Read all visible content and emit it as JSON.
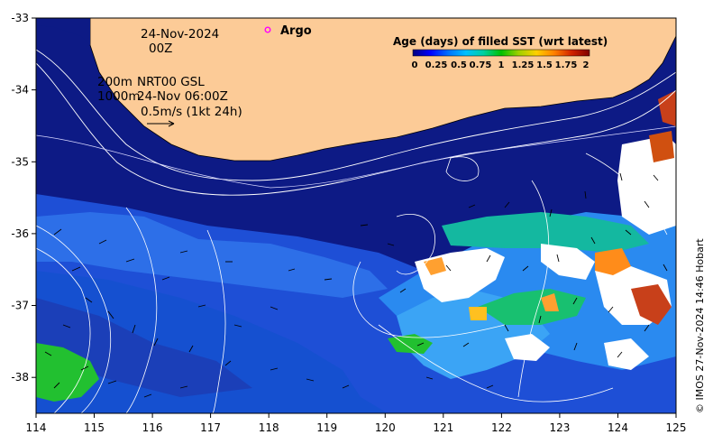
{
  "map": {
    "lon_range": [
      114,
      125
    ],
    "lat_range": [
      -38.5,
      -33
    ],
    "x_ticks": [
      "114",
      "115",
      "116",
      "117",
      "118",
      "119",
      "120",
      "121",
      "122",
      "123",
      "124",
      "125"
    ],
    "y_ticks": [
      "-33",
      "-34",
      "-35",
      "-36",
      "-37",
      "-38"
    ],
    "colors": {
      "land": "#fccb97",
      "ocean_deep": "#0d1a85",
      "coast": "#000000"
    }
  },
  "annotations": {
    "date": "24-Nov-2024",
    "time": "00Z",
    "depth_200": "200m",
    "depth_1000": "1000m",
    "product": "NRT00 GSL",
    "product_time": "24-Nov 06:00Z",
    "scale_label": "0.5m/s (1kt 24h)"
  },
  "legend": {
    "argo_label": "Argo",
    "argo_color": "#ff00ff"
  },
  "colorbar": {
    "title": "Age (days) of filled SST (wrt latest)",
    "ticks": [
      "0",
      "0.25",
      "0.5",
      "0.75",
      "1",
      "1.25",
      "1.5",
      "1.75",
      "2"
    ],
    "colors": [
      "#000080",
      "#0000ff",
      "#0070ff",
      "#00c0ff",
      "#00d0a0",
      "#00c000",
      "#a0d000",
      "#ffd000",
      "#ff8000",
      "#d02000",
      "#800000"
    ]
  },
  "credit": "© IMOS 27-Nov-2024 14:46 Hobart"
}
